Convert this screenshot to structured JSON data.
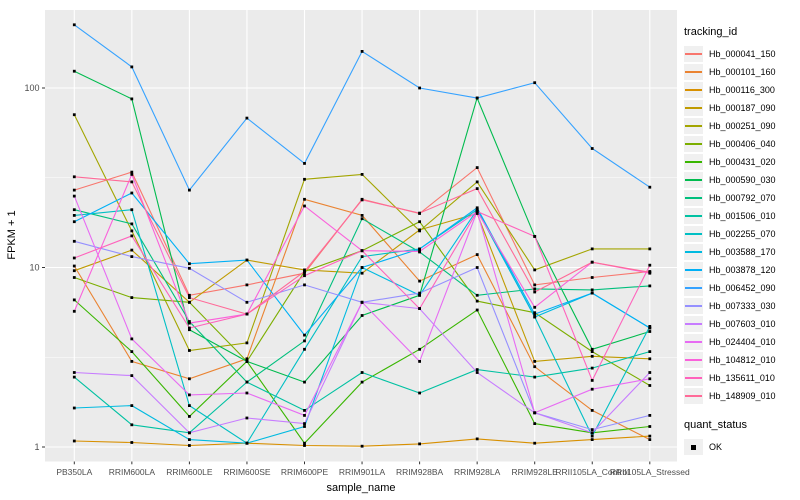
{
  "chart_data": {
    "type": "line",
    "title": "",
    "xlabel": "sample_name",
    "ylabel": "FPKM + 1",
    "y_scale": "log10",
    "y_ticks": [
      1,
      10,
      100
    ],
    "y_minor_ticks": [
      3.162,
      31.62
    ],
    "ylim": [
      0.85,
      280
    ],
    "grid": true,
    "legend_position": "right",
    "panel_bg": "#EBEBEB",
    "grid_color": "#FFFFFF",
    "tick_text_color": "#4D4D4D",
    "point_color": "#000000",
    "legend_key_bg": "#F0F0F0",
    "categories": [
      "PB350LA",
      "RRIM600LA",
      "RRIM600LE",
      "RRIM600SE",
      "RRIM600PE",
      "RRIM901LA",
      "RRIM928BA",
      "RRIM928LA",
      "RRIM928LE",
      "RRII105LA_Control",
      "RRII105LA_Stressed"
    ],
    "legend": {
      "title": "tracking_id"
    },
    "legend2": {
      "title": "quant_status",
      "items": [
        "OK"
      ]
    },
    "series": [
      {
        "name": "Hb_000041_150",
        "color": "#F8766D",
        "values": [
          27,
          34,
          7,
          8,
          9.3,
          24,
          20,
          36,
          8,
          8.8,
          9.5
        ]
      },
      {
        "name": "Hb_000101_160",
        "color": "#EA8331",
        "values": [
          10.2,
          3,
          2.4,
          3.1,
          24,
          19.5,
          8.4,
          11.8,
          2.8,
          1.6,
          1.1
        ]
      },
      {
        "name": "Hb_000116_300",
        "color": "#D89000",
        "values": [
          1.08,
          1.06,
          1.02,
          1.05,
          1.02,
          1.01,
          1.04,
          1.11,
          1.05,
          1.1,
          1.15
        ]
      },
      {
        "name": "Hb_000187_090",
        "color": "#C09B00",
        "values": [
          9.6,
          12.5,
          6.4,
          11,
          9.7,
          9.3,
          16.2,
          20,
          3,
          3.2,
          3.1
        ]
      },
      {
        "name": "Hb_000251_090",
        "color": "#A3A500",
        "values": [
          71,
          16,
          3.45,
          3.8,
          31,
          33,
          16,
          30,
          9.7,
          12.7,
          12.7
        ]
      },
      {
        "name": "Hb_000406_040",
        "color": "#7CAE00",
        "values": [
          8.8,
          6.8,
          6.4,
          3,
          9.5,
          12.4,
          18,
          6.5,
          5.6,
          3.4,
          2.2
        ]
      },
      {
        "name": "Hb_000431_020",
        "color": "#39B600",
        "values": [
          6.6,
          3.4,
          1.48,
          3,
          1.05,
          2.3,
          3.5,
          5.8,
          1.35,
          1.2,
          1.3
        ]
      },
      {
        "name": "Hb_000590_030",
        "color": "#00BB4E",
        "values": [
          124,
          87,
          4.5,
          3,
          2.3,
          5.4,
          7,
          88,
          14.9,
          3.5,
          4.4
        ]
      },
      {
        "name": "Hb_000792_070",
        "color": "#00BF7D",
        "values": [
          21,
          17.5,
          5,
          2.3,
          3.9,
          18.7,
          12.2,
          7,
          7.6,
          7.5,
          7.9
        ]
      },
      {
        "name": "Hb_001506_010",
        "color": "#00C1A2",
        "values": [
          2.45,
          1.33,
          1.2,
          2.3,
          1.6,
          2.6,
          2,
          2.7,
          2.45,
          2.75,
          3.4
        ]
      },
      {
        "name": "Hb_002255_070",
        "color": "#00BFC4",
        "values": [
          19.5,
          21,
          1.7,
          1.05,
          3.5,
          11.5,
          12.7,
          21,
          5.3,
          1.15,
          4.7
        ]
      },
      {
        "name": "Hb_003588_170",
        "color": "#00BAE0",
        "values": [
          1.65,
          1.7,
          1.1,
          1.05,
          1.3,
          10,
          7,
          21,
          5.3,
          7.2,
          4.6
        ]
      },
      {
        "name": "Hb_003878_120",
        "color": "#00B0F6",
        "values": [
          18,
          26,
          10.5,
          11,
          4.2,
          10,
          12.7,
          21.5,
          5.5,
          7.2,
          4.6
        ]
      },
      {
        "name": "Hb_006452_090",
        "color": "#35A2FF",
        "values": [
          225,
          131,
          27,
          68,
          38,
          160,
          100,
          88,
          107,
          46,
          28
        ]
      },
      {
        "name": "Hb_007333_030",
        "color": "#9590FF",
        "values": [
          14,
          11.5,
          9.9,
          6.4,
          8,
          6.4,
          7.2,
          10,
          1.55,
          1.25,
          1.5
        ]
      },
      {
        "name": "Hb_007603_010",
        "color": "#C77CFF",
        "values": [
          2.6,
          2.5,
          1.2,
          1.45,
          1.35,
          6.4,
          5.9,
          2.6,
          1.55,
          1.2,
          2.6
        ]
      },
      {
        "name": "Hb_024404_010",
        "color": "#E76BF3",
        "values": [
          25,
          4,
          1.95,
          2,
          1.5,
          6.4,
          3,
          20.5,
          1.55,
          2.1,
          2.4
        ]
      },
      {
        "name": "Hb_104812_010",
        "color": "#FA62DB",
        "values": [
          5.7,
          33,
          4.9,
          5.5,
          22,
          12.4,
          12.3,
          20.5,
          6,
          10.7,
          9.3
        ]
      },
      {
        "name": "Hb_135611_010",
        "color": "#FF62BC",
        "values": [
          11.3,
          15,
          4.6,
          5.5,
          9,
          12.4,
          5.9,
          20.5,
          14.9,
          2.35,
          10.3
        ]
      },
      {
        "name": "Hb_148909_010",
        "color": "#FF6A98",
        "values": [
          32,
          30,
          6.8,
          5.5,
          9.5,
          23.8,
          20.1,
          27.5,
          7.3,
          10.7,
          9.4
        ]
      }
    ]
  }
}
